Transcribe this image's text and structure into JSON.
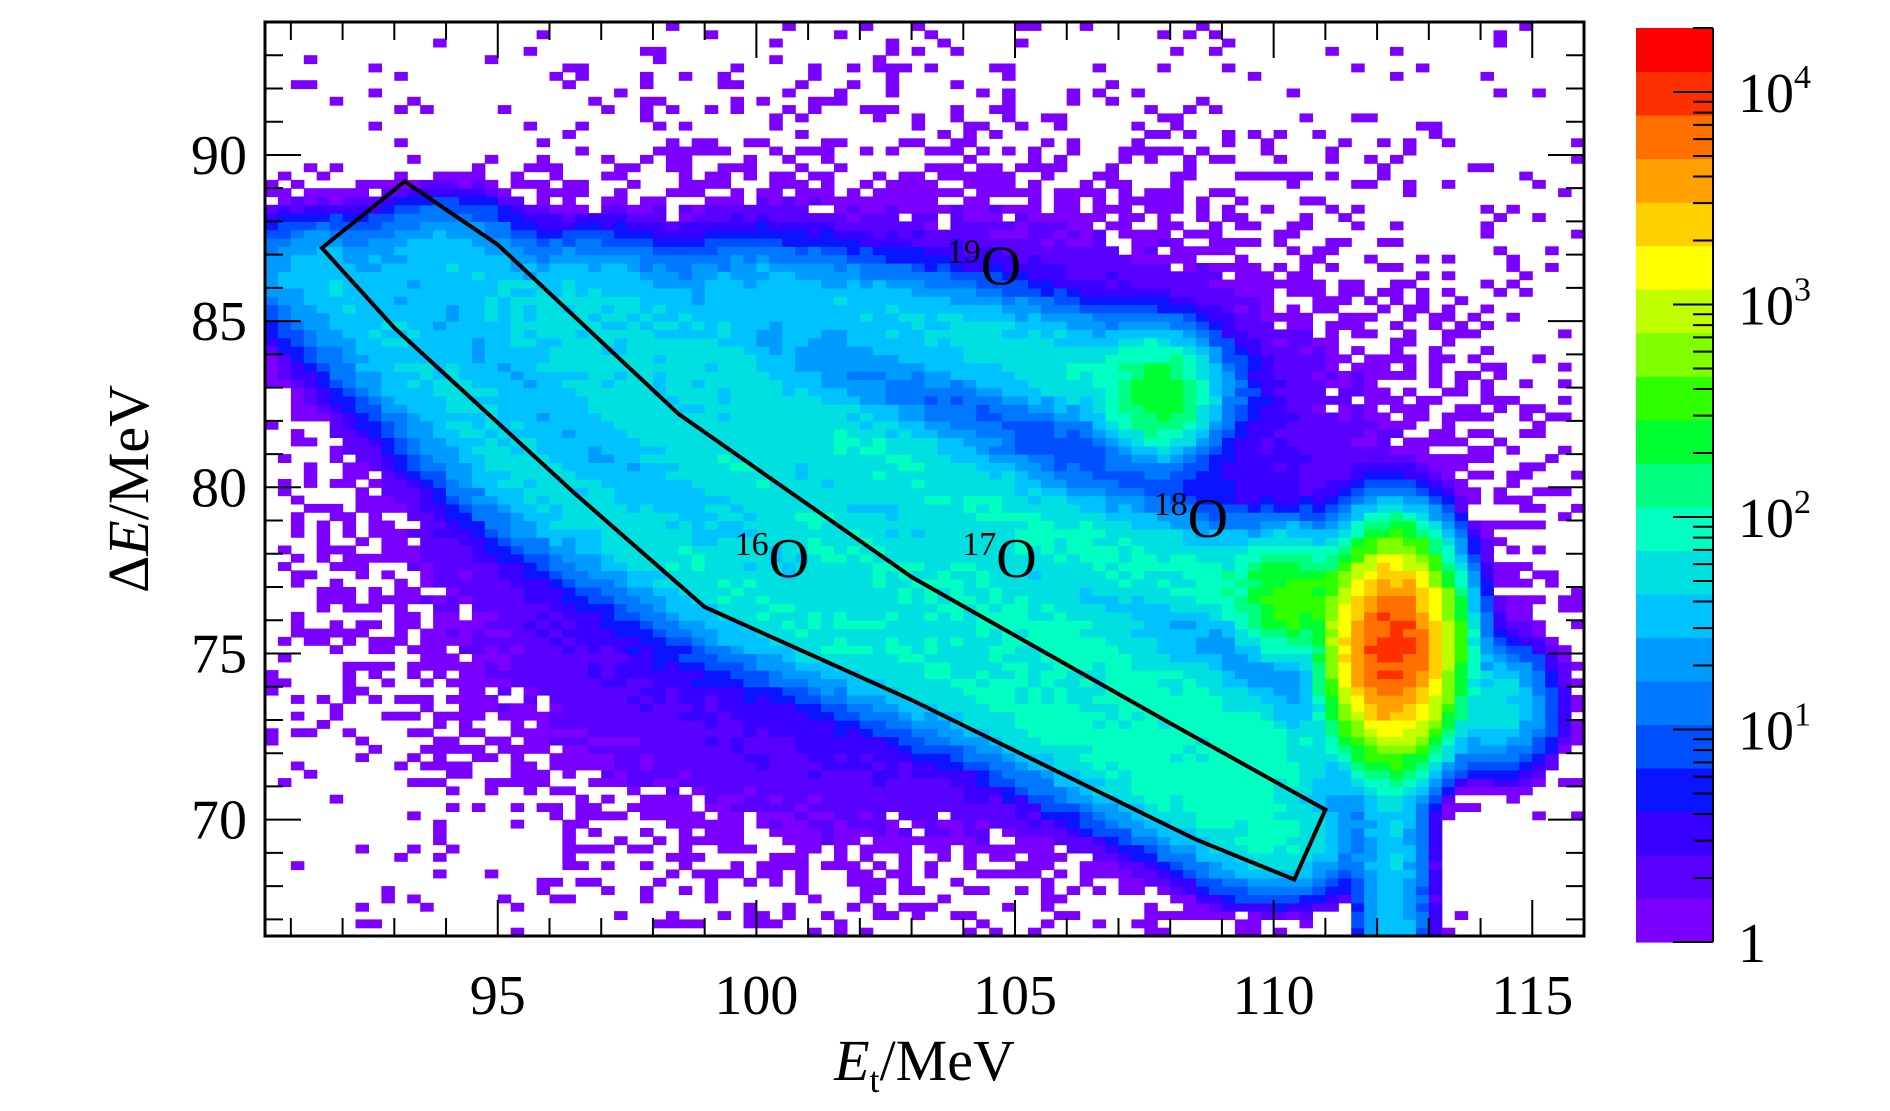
{
  "chart_data": {
    "type": "heatmap",
    "description_axes": {
      "x": {
        "symbol": "E",
        "subscript": "t",
        "unit": "/MeV",
        "range": [
          90.5,
          116
        ],
        "ticks": [
          95,
          100,
          105,
          110,
          115
        ]
      },
      "y": {
        "symbol": "ΔE",
        "unit": "/MeV",
        "range": [
          66.5,
          94
        ],
        "ticks": [
          70,
          75,
          80,
          85,
          90
        ]
      }
    },
    "colorbar": {
      "scale": "log",
      "range": [
        1,
        20000
      ],
      "tick_labels": [
        {
          "base": "1",
          "exp": ""
        },
        {
          "base": "10",
          "exp": "1"
        },
        {
          "base": "10",
          "exp": "2"
        },
        {
          "base": "10",
          "exp": "3"
        },
        {
          "base": "10",
          "exp": "4"
        }
      ],
      "tick_values": [
        1,
        10,
        100,
        1000,
        10000
      ],
      "colors": [
        "#7b00ff",
        "#5a00ff",
        "#3a00ff",
        "#0a14ff",
        "#0050ff",
        "#0078ff",
        "#009bff",
        "#00c2ff",
        "#00e0e0",
        "#00ffc0",
        "#00ff80",
        "#00ff30",
        "#30ff00",
        "#80ff00",
        "#c0ff00",
        "#ffff00",
        "#ffd000",
        "#ffa000",
        "#ff7000",
        "#ff3000",
        "#ff0000"
      ]
    },
    "series": [
      {
        "name": "16O",
        "ridge": [
          [
            91.5,
            86.5
          ],
          [
            96,
            80
          ],
          [
            100,
            76.5
          ],
          [
            105,
            73.5
          ],
          [
            110,
            69.5
          ]
        ]
      },
      {
        "name": "17O",
        "ridge": [
          [
            94,
            87
          ],
          [
            98,
            82
          ],
          [
            102,
            78
          ],
          [
            106,
            75.5
          ],
          [
            110,
            72
          ]
        ]
      },
      {
        "name": "18O",
        "ridge": [
          [
            97,
            86
          ],
          [
            101,
            82
          ],
          [
            105,
            79
          ],
          [
            108,
            77.5
          ],
          [
            110.3,
            76.7
          ]
        ]
      },
      {
        "name": "19O",
        "ridge": [
          [
            100,
            86
          ],
          [
            104,
            84.5
          ],
          [
            107.5,
            83
          ]
        ]
      }
    ],
    "hotspots": [
      {
        "x": 112.3,
        "y": 75.2,
        "level": 10000
      },
      {
        "x": 110.3,
        "y": 76.7,
        "level": 300
      },
      {
        "x": 107.8,
        "y": 82.8,
        "level": 200
      },
      {
        "x": 114.4,
        "y": 73.4,
        "level": 60
      }
    ],
    "gate_polygon": [
      [
        91.6,
        87.2
      ],
      [
        93.2,
        89.2
      ],
      [
        95,
        87.3
      ],
      [
        98.5,
        82.2
      ],
      [
        103,
        77.3
      ],
      [
        108,
        72.9
      ],
      [
        111,
        70.3
      ],
      [
        110.4,
        68.2
      ],
      [
        108.5,
        69.4
      ],
      [
        103,
        73.6
      ],
      [
        99,
        76.4
      ],
      [
        96.5,
        79.8
      ],
      [
        93,
        84.8
      ]
    ],
    "annotations": [
      {
        "base": "O",
        "sup": "16",
        "x": 100.3,
        "y": 77.3
      },
      {
        "base": "O",
        "sup": "17",
        "x": 104.7,
        "y": 77.3
      },
      {
        "base": "O",
        "sup": "18",
        "x": 108.4,
        "y": 78.5
      },
      {
        "base": "O",
        "sup": "19",
        "x": 104.4,
        "y": 86.1
      }
    ],
    "grid": false,
    "legend": "colorbar-right"
  }
}
